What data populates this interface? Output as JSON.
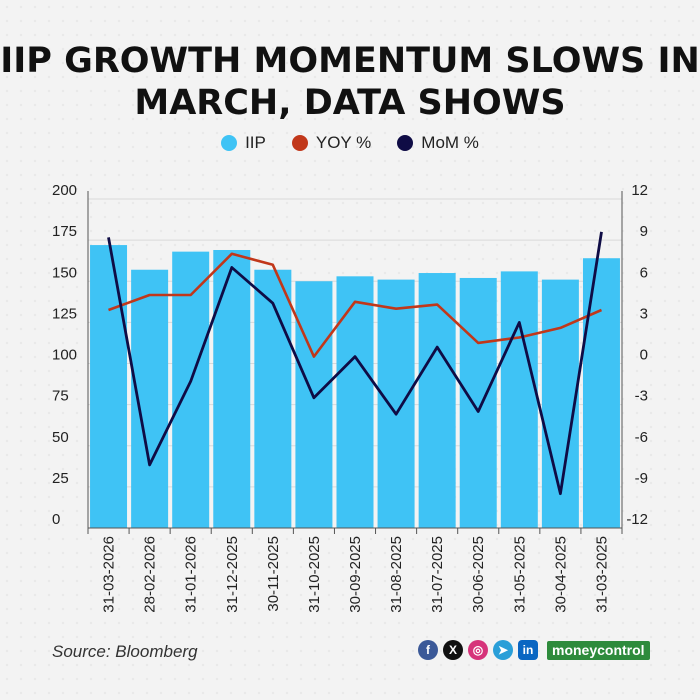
{
  "title": "IIP GROWTH MOMENTUM SLOWS IN MARCH, DATA SHOWS",
  "legend": [
    {
      "label": "IIP",
      "color": "#3fc3f5"
    },
    {
      "label": "YOY %",
      "color": "#c1371a"
    },
    {
      "label": "MoM %",
      "color": "#0f0c45"
    }
  ],
  "source": "Source: Bloomberg",
  "brand": "moneycontrol",
  "social_icons": [
    "facebook-icon",
    "x-icon",
    "instagram-icon",
    "telegram-icon",
    "linkedin-icon"
  ],
  "chart_data": {
    "type": "bar",
    "categories": [
      "31-03-2026",
      "28-02-2026",
      "31-01-2026",
      "31-12-2025",
      "30-11-2025",
      "31-10-2025",
      "30-09-2025",
      "31-08-2025",
      "31-07-2025",
      "30-06-2025",
      "31-05-2025",
      "30-04-2025",
      "31-03-2025"
    ],
    "series": [
      {
        "name": "IIP",
        "type": "bar",
        "axis": "left",
        "color": "#3fc3f5",
        "values": [
          172,
          157,
          168,
          169,
          157,
          150,
          153,
          151,
          155,
          152,
          156,
          151,
          164
        ]
      },
      {
        "name": "YOY %",
        "type": "line",
        "axis": "right",
        "color": "#c1371a",
        "values": [
          3.9,
          5.0,
          5.0,
          8.0,
          7.2,
          0.5,
          4.5,
          4.0,
          4.3,
          1.5,
          1.9,
          2.6,
          3.9
        ]
      },
      {
        "name": "MoM %",
        "type": "line",
        "axis": "right",
        "color": "#0f0c45",
        "values": [
          9.2,
          -7.4,
          -1.3,
          7.0,
          4.4,
          -2.5,
          0.5,
          -3.7,
          1.2,
          -3.5,
          3.0,
          -9.5,
          9.6
        ]
      }
    ],
    "y_left": {
      "min": 0,
      "max": 200,
      "ticks": [
        "0",
        "25",
        "50",
        "75",
        "100",
        "125",
        "150",
        "175",
        "200"
      ]
    },
    "y_right": {
      "min": -12,
      "max": 12,
      "ticks": [
        "-12",
        "-9",
        "-6",
        "-3",
        "0",
        "3",
        "6",
        "9",
        "12"
      ]
    },
    "grid": true
  }
}
